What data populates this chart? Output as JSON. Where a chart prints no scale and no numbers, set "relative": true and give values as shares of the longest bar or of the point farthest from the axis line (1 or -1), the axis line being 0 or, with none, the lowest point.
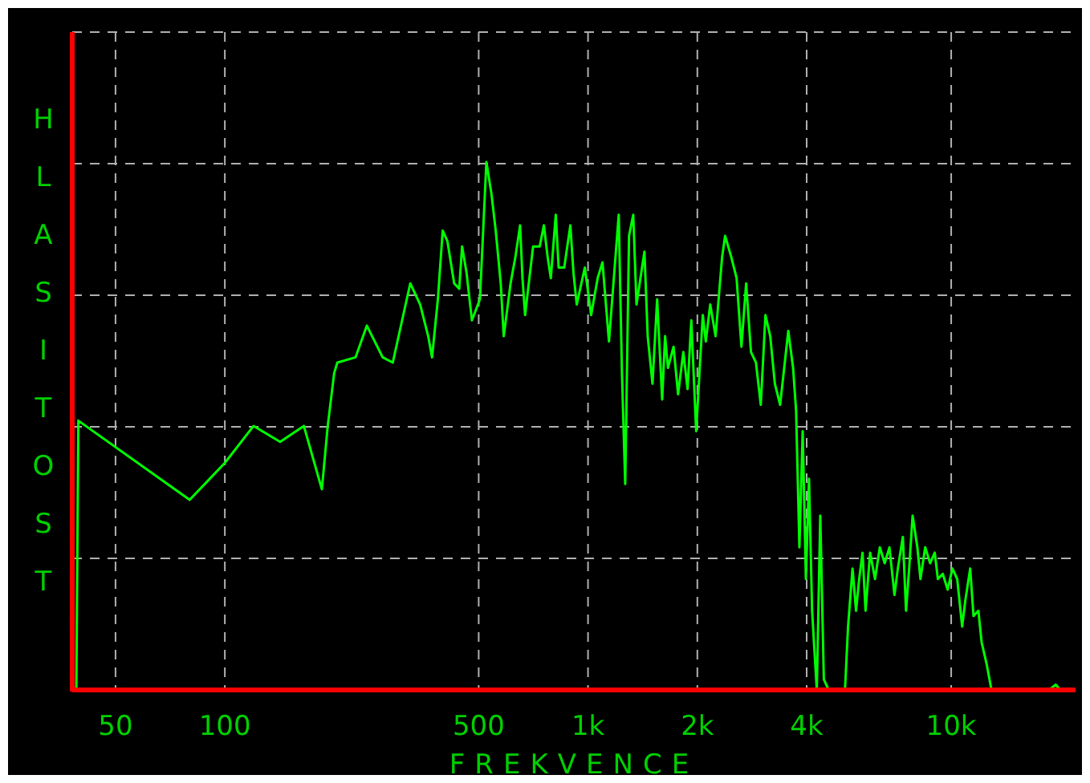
{
  "chart_data": {
    "type": "line",
    "xlabel": "FREKVENCE",
    "ylabel": "HLASITOST",
    "relative": true,
    "log": "x",
    "grid": true,
    "marker": "none",
    "line_style": "solid",
    "xlim": [
      38,
      22000
    ],
    "xticks": [
      50,
      100,
      500,
      {
        "value": 1000,
        "label": "1k"
      },
      {
        "value": 2000,
        "label": "2k"
      },
      {
        "value": 4000,
        "label": "4k"
      },
      {
        "value": 10000,
        "label": "10k"
      }
    ],
    "x": [
      39,
      39.5,
      80,
      100,
      120,
      142,
      165,
      185,
      192,
      200,
      204,
      229,
      246,
      272,
      290,
      324,
      345,
      363,
      372,
      386,
      398,
      410,
      428,
      442,
      450,
      463,
      479,
      504,
      525,
      542,
      557,
      575,
      586,
      612,
      631,
      650,
      660,
      671,
      706,
      736,
      756,
      774,
      790,
      815,
      830,
      860,
      894,
      912,
      931,
      980,
      1020,
      1063,
      1096,
      1142,
      1215,
      1240,
      1266,
      1297,
      1332,
      1360,
      1430,
      1460,
      1505,
      1550,
      1600,
      1630,
      1660,
      1720,
      1770,
      1830,
      1880,
      1925,
      1985,
      2070,
      2110,
      2170,
      2245,
      2340,
      2385,
      2480,
      2565,
      2645,
      2725,
      2810,
      2900,
      2990,
      3080,
      3175,
      3270,
      3380,
      3560,
      3670,
      3740,
      3820,
      3900,
      3980,
      4060,
      4140,
      4265,
      4360,
      4460,
      4600,
      5100,
      5200,
      5350,
      5470,
      5580,
      5700,
      5810,
      5980,
      6170,
      6360,
      6560,
      6760,
      6980,
      7130,
      7360,
      7510,
      7660,
      7830,
      8070,
      8230,
      8480,
      8750,
      9010,
      9190,
      9480,
      9780,
      10080,
      10390,
      10720,
      10940,
      11280,
      11520,
      11880,
      12130,
      12510,
      12910,
      18600,
      19400,
      20000,
      22000
    ],
    "series": [
      {
        "color": "#00ff00",
        "values": [
          0,
          0.51,
          0.36,
          0.43,
          0.5,
          0.47,
          0.5,
          0.38,
          0.5,
          0.6,
          0.62,
          0.63,
          0.69,
          0.63,
          0.62,
          0.77,
          0.73,
          0.67,
          0.63,
          0.74,
          0.87,
          0.85,
          0.77,
          0.76,
          0.84,
          0.79,
          0.7,
          0.74,
          1,
          0.94,
          0.87,
          0.77,
          0.67,
          0.77,
          0.82,
          0.88,
          0.78,
          0.71,
          0.84,
          0.84,
          0.88,
          0.82,
          0.78,
          0.9,
          0.8,
          0.8,
          0.88,
          0.79,
          0.73,
          0.8,
          0.71,
          0.78,
          0.81,
          0.66,
          0.9,
          0.6,
          0.39,
          0.86,
          0.9,
          0.73,
          0.83,
          0.67,
          0.58,
          0.74,
          0.55,
          0.67,
          0.61,
          0.65,
          0.56,
          0.64,
          0.57,
          0.7,
          0.49,
          0.71,
          0.66,
          0.73,
          0.67,
          0.82,
          0.86,
          0.82,
          0.78,
          0.65,
          0.77,
          0.64,
          0.62,
          0.54,
          0.71,
          0.67,
          0.58,
          0.54,
          0.68,
          0.61,
          0.53,
          0.27,
          0.49,
          0.21,
          0.4,
          0.15,
          0,
          0.33,
          0.02,
          0,
          0,
          0.12,
          0.23,
          0.15,
          0.21,
          0.26,
          0.15,
          0.26,
          0.21,
          0.27,
          0.24,
          0.27,
          0.18,
          0.23,
          0.29,
          0.15,
          0.23,
          0.33,
          0.27,
          0.21,
          0.27,
          0.24,
          0.26,
          0.21,
          0.22,
          0.19,
          0.23,
          0.21,
          0.12,
          0.17,
          0.23,
          0.14,
          0.15,
          0.09,
          0.05,
          0,
          0,
          0.01,
          0,
          0
        ]
      }
    ]
  }
}
